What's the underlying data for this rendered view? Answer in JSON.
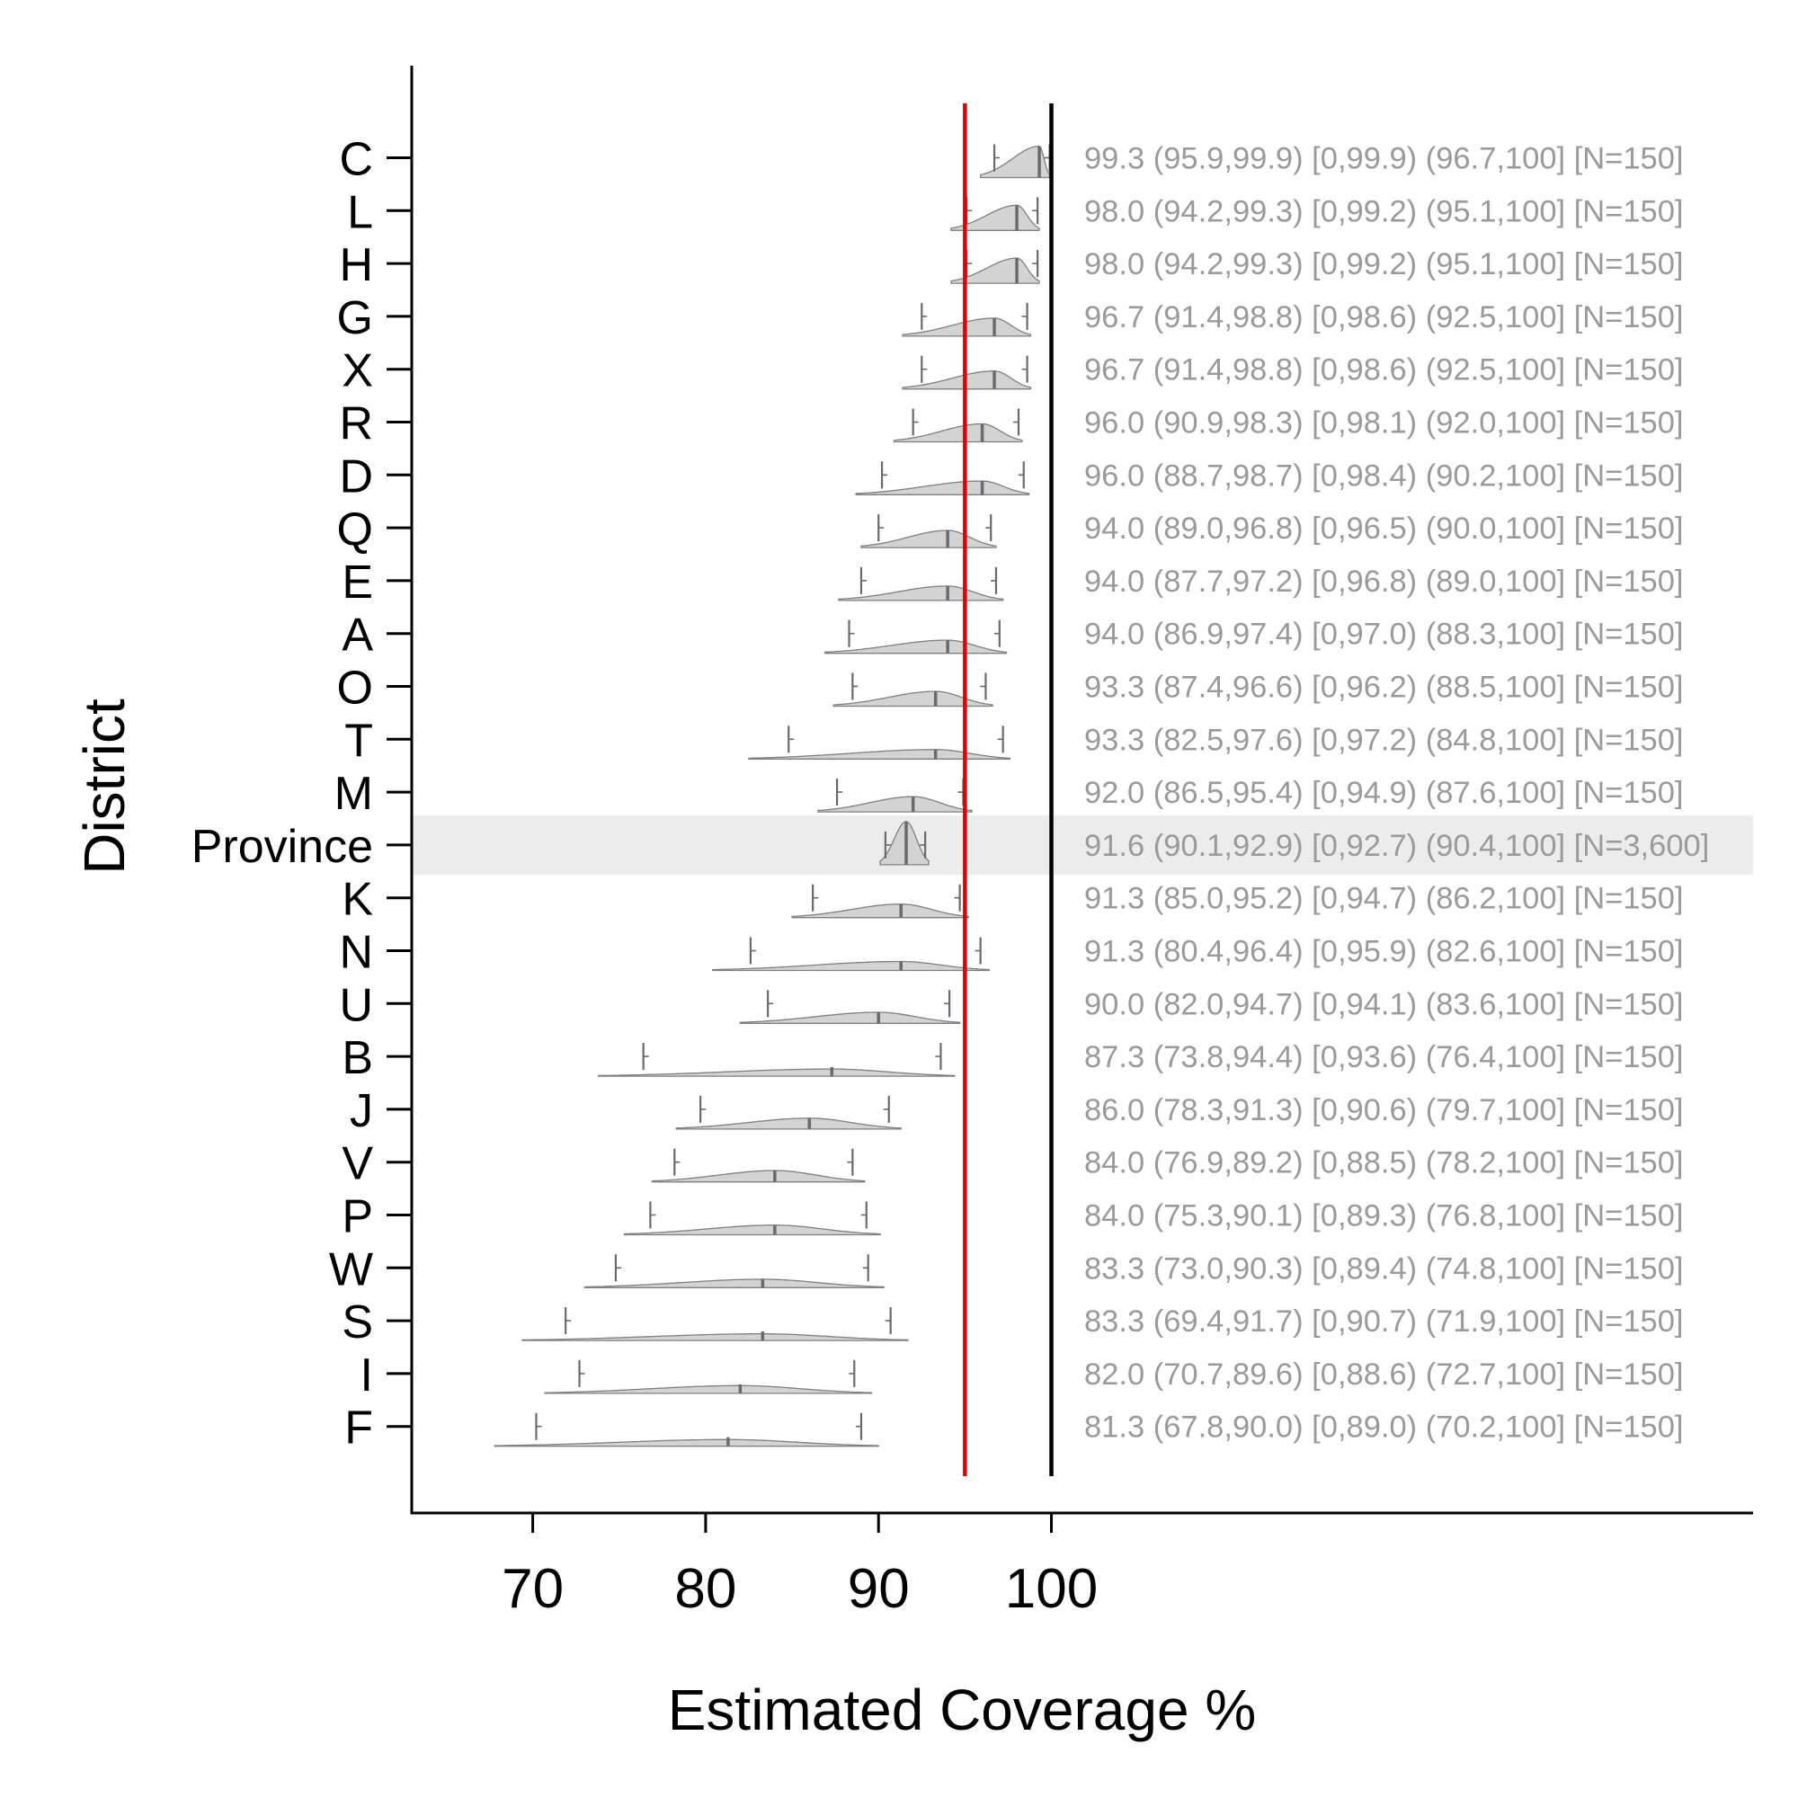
{
  "chart_data": {
    "type": "density",
    "xlabel": "Estimated Coverage %",
    "ylabel": "District",
    "xlim": [
      63,
      141
    ],
    "x_ticks": [
      70,
      80,
      90,
      100
    ],
    "grid": false,
    "reference_lines": [
      {
        "value": 95,
        "color": "#e00000"
      },
      {
        "value": 100,
        "color": "#000000"
      }
    ],
    "highlight_row": "Province",
    "colors": {
      "density_fill": "#d3d3d3",
      "density_stroke": "#7f7f7f",
      "highlight_band": "#ececec",
      "annotation_text": "#9a9a9a"
    },
    "rows": [
      {
        "label": "C",
        "point": 99.3,
        "ci95": [
          95.9,
          99.9
        ],
        "ub": 99.9,
        "ci_tick": [
          96.7,
          100
        ],
        "n": 150,
        "annotation": "99.3 (95.9,99.9) [0,99.9) (96.7,100] [N=150]"
      },
      {
        "label": "L",
        "point": 98.0,
        "ci95": [
          94.2,
          99.3
        ],
        "ub": 99.2,
        "ci_tick": [
          95.1,
          100
        ],
        "n": 150,
        "annotation": "98.0 (94.2,99.3) [0,99.2) (95.1,100] [N=150]"
      },
      {
        "label": "H",
        "point": 98.0,
        "ci95": [
          94.2,
          99.3
        ],
        "ub": 99.2,
        "ci_tick": [
          95.1,
          100
        ],
        "n": 150,
        "annotation": "98.0 (94.2,99.3) [0,99.2) (95.1,100] [N=150]"
      },
      {
        "label": "G",
        "point": 96.7,
        "ci95": [
          91.4,
          98.8
        ],
        "ub": 98.6,
        "ci_tick": [
          92.5,
          100
        ],
        "n": 150,
        "annotation": "96.7 (91.4,98.8) [0,98.6) (92.5,100] [N=150]"
      },
      {
        "label": "X",
        "point": 96.7,
        "ci95": [
          91.4,
          98.8
        ],
        "ub": 98.6,
        "ci_tick": [
          92.5,
          100
        ],
        "n": 150,
        "annotation": "96.7 (91.4,98.8) [0,98.6) (92.5,100] [N=150]"
      },
      {
        "label": "R",
        "point": 96.0,
        "ci95": [
          90.9,
          98.3
        ],
        "ub": 98.1,
        "ci_tick": [
          92.0,
          100
        ],
        "n": 150,
        "annotation": "96.0 (90.9,98.3) [0,98.1) (92.0,100] [N=150]"
      },
      {
        "label": "D",
        "point": 96.0,
        "ci95": [
          88.7,
          98.7
        ],
        "ub": 98.4,
        "ci_tick": [
          90.2,
          100
        ],
        "n": 150,
        "annotation": "96.0 (88.7,98.7) [0,98.4) (90.2,100] [N=150]"
      },
      {
        "label": "Q",
        "point": 94.0,
        "ci95": [
          89.0,
          96.8
        ],
        "ub": 96.5,
        "ci_tick": [
          90.0,
          100
        ],
        "n": 150,
        "annotation": "94.0 (89.0,96.8) [0,96.5) (90.0,100] [N=150]"
      },
      {
        "label": "E",
        "point": 94.0,
        "ci95": [
          87.7,
          97.2
        ],
        "ub": 96.8,
        "ci_tick": [
          89.0,
          100
        ],
        "n": 150,
        "annotation": "94.0 (87.7,97.2) [0,96.8) (89.0,100] [N=150]"
      },
      {
        "label": "A",
        "point": 94.0,
        "ci95": [
          86.9,
          97.4
        ],
        "ub": 97.0,
        "ci_tick": [
          88.3,
          100
        ],
        "n": 150,
        "annotation": "94.0 (86.9,97.4) [0,97.0) (88.3,100] [N=150]"
      },
      {
        "label": "O",
        "point": 93.3,
        "ci95": [
          87.4,
          96.6
        ],
        "ub": 96.2,
        "ci_tick": [
          88.5,
          100
        ],
        "n": 150,
        "annotation": "93.3 (87.4,96.6) [0,96.2) (88.5,100] [N=150]"
      },
      {
        "label": "T",
        "point": 93.3,
        "ci95": [
          82.5,
          97.6
        ],
        "ub": 97.2,
        "ci_tick": [
          84.8,
          100
        ],
        "n": 150,
        "annotation": "93.3 (82.5,97.6) [0,97.2) (84.8,100] [N=150]"
      },
      {
        "label": "M",
        "point": 92.0,
        "ci95": [
          86.5,
          95.4
        ],
        "ub": 94.9,
        "ci_tick": [
          87.6,
          100
        ],
        "n": 150,
        "annotation": "92.0 (86.5,95.4) [0,94.9) (87.6,100] [N=150]"
      },
      {
        "label": "Province",
        "point": 91.6,
        "ci95": [
          90.1,
          92.9
        ],
        "ub": 92.7,
        "ci_tick": [
          90.4,
          100
        ],
        "n": 3600,
        "annotation": "91.6 (90.1,92.9) [0,92.7) (90.4,100] [N=3,600]"
      },
      {
        "label": "K",
        "point": 91.3,
        "ci95": [
          85.0,
          95.2
        ],
        "ub": 94.7,
        "ci_tick": [
          86.2,
          100
        ],
        "n": 150,
        "annotation": "91.3 (85.0,95.2) [0,94.7) (86.2,100] [N=150]"
      },
      {
        "label": "N",
        "point": 91.3,
        "ci95": [
          80.4,
          96.4
        ],
        "ub": 95.9,
        "ci_tick": [
          82.6,
          100
        ],
        "n": 150,
        "annotation": "91.3 (80.4,96.4) [0,95.9) (82.6,100] [N=150]"
      },
      {
        "label": "U",
        "point": 90.0,
        "ci95": [
          82.0,
          94.7
        ],
        "ub": 94.1,
        "ci_tick": [
          83.6,
          100
        ],
        "n": 150,
        "annotation": "90.0 (82.0,94.7) [0,94.1) (83.6,100] [N=150]"
      },
      {
        "label": "B",
        "point": 87.3,
        "ci95": [
          73.8,
          94.4
        ],
        "ub": 93.6,
        "ci_tick": [
          76.4,
          100
        ],
        "n": 150,
        "annotation": "87.3 (73.8,94.4) [0,93.6) (76.4,100] [N=150]"
      },
      {
        "label": "J",
        "point": 86.0,
        "ci95": [
          78.3,
          91.3
        ],
        "ub": 90.6,
        "ci_tick": [
          79.7,
          100
        ],
        "n": 150,
        "annotation": "86.0 (78.3,91.3) [0,90.6) (79.7,100] [N=150]"
      },
      {
        "label": "V",
        "point": 84.0,
        "ci95": [
          76.9,
          89.2
        ],
        "ub": 88.5,
        "ci_tick": [
          78.2,
          100
        ],
        "n": 150,
        "annotation": "84.0 (76.9,89.2) [0,88.5) (78.2,100] [N=150]"
      },
      {
        "label": "P",
        "point": 84.0,
        "ci95": [
          75.3,
          90.1
        ],
        "ub": 89.3,
        "ci_tick": [
          76.8,
          100
        ],
        "n": 150,
        "annotation": "84.0 (75.3,90.1) [0,89.3) (76.8,100] [N=150]"
      },
      {
        "label": "W",
        "point": 83.3,
        "ci95": [
          73.0,
          90.3
        ],
        "ub": 89.4,
        "ci_tick": [
          74.8,
          100
        ],
        "n": 150,
        "annotation": "83.3 (73.0,90.3) [0,89.4) (74.8,100] [N=150]"
      },
      {
        "label": "S",
        "point": 83.3,
        "ci95": [
          69.4,
          91.7
        ],
        "ub": 90.7,
        "ci_tick": [
          71.9,
          100
        ],
        "n": 150,
        "annotation": "83.3 (69.4,91.7) [0,90.7) (71.9,100] [N=150]"
      },
      {
        "label": "I",
        "point": 82.0,
        "ci95": [
          70.7,
          89.6
        ],
        "ub": 88.6,
        "ci_tick": [
          72.7,
          100
        ],
        "n": 150,
        "annotation": "82.0 (70.7,89.6) [0,88.6) (72.7,100] [N=150]"
      },
      {
        "label": "F",
        "point": 81.3,
        "ci95": [
          67.8,
          90.0
        ],
        "ub": 89.0,
        "ci_tick": [
          70.2,
          100
        ],
        "n": 150,
        "annotation": "81.3 (67.8,90.0) [0,89.0) (70.2,100] [N=150]"
      }
    ]
  }
}
